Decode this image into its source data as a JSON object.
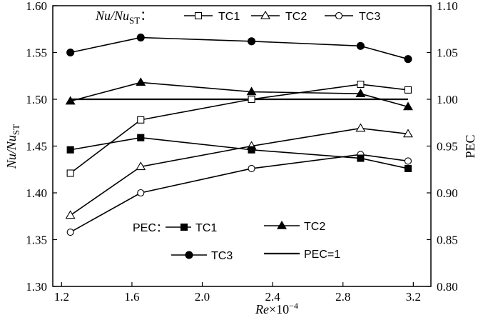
{
  "chart_data": {
    "type": "line",
    "x": [
      1.25,
      1.65,
      2.28,
      2.9,
      3.17
    ],
    "xlim": [
      1.15,
      3.3
    ],
    "xticks": [
      "1.2",
      "1.6",
      "2.0",
      "2.4",
      "2.8",
      "3.2"
    ],
    "xtick_values": [
      1.2,
      1.6,
      2.0,
      2.4,
      2.8,
      3.2
    ],
    "xlabel_italic": "Re",
    "xlabel_rest": "×10",
    "xlabel_exp": "−4",
    "left_axis": {
      "label_main": "Nu/Nu",
      "label_sub": "ST",
      "ylim": [
        1.3,
        1.6
      ],
      "ticks": [
        "1.30",
        "1.35",
        "1.40",
        "1.45",
        "1.50",
        "1.55",
        "1.60"
      ],
      "tick_values": [
        1.3,
        1.35,
        1.4,
        1.45,
        1.5,
        1.55,
        1.6
      ]
    },
    "right_axis": {
      "label": "PEC",
      "ylim": [
        0.8,
        1.1
      ],
      "ticks": [
        "0.80",
        "0.85",
        "0.90",
        "0.95",
        "1.00",
        "1.05",
        "1.10"
      ],
      "tick_values": [
        0.8,
        0.85,
        0.9,
        0.95,
        1.0,
        1.05,
        1.1
      ]
    },
    "legend_nu": {
      "title_main": "Nu/Nu",
      "title_sub": "ST",
      "title_colon": "：",
      "items": [
        "TC1",
        "TC2",
        "TC3"
      ]
    },
    "legend_pec": {
      "title": "PEC：",
      "items": [
        "TC1",
        "TC2",
        "TC3",
        "PEC=1"
      ]
    },
    "nu_series": [
      {
        "name": "TC1",
        "marker": "square-open",
        "values": [
          1.421,
          1.478,
          1.5,
          1.516,
          1.51
        ]
      },
      {
        "name": "TC2",
        "marker": "triangle-open",
        "values": [
          1.376,
          1.428,
          1.45,
          1.469,
          1.463
        ]
      },
      {
        "name": "TC3",
        "marker": "circle-open",
        "values": [
          1.358,
          1.4,
          1.426,
          1.441,
          1.434
        ]
      }
    ],
    "pec_series": [
      {
        "name": "TC1",
        "marker": "square-filled",
        "values": [
          0.946,
          0.959,
          0.946,
          0.937,
          0.926
        ]
      },
      {
        "name": "TC2",
        "marker": "triangle-filled",
        "values": [
          0.998,
          1.018,
          1.008,
          1.006,
          0.992
        ]
      },
      {
        "name": "TC3",
        "marker": "circle-filled",
        "values": [
          1.05,
          1.066,
          1.062,
          1.057,
          1.043
        ]
      }
    ],
    "reference_line": {
      "name": "PEC=1",
      "value": 1.0
    },
    "colors": {
      "line": "#000000",
      "background": "#ffffff"
    },
    "grid": false
  }
}
